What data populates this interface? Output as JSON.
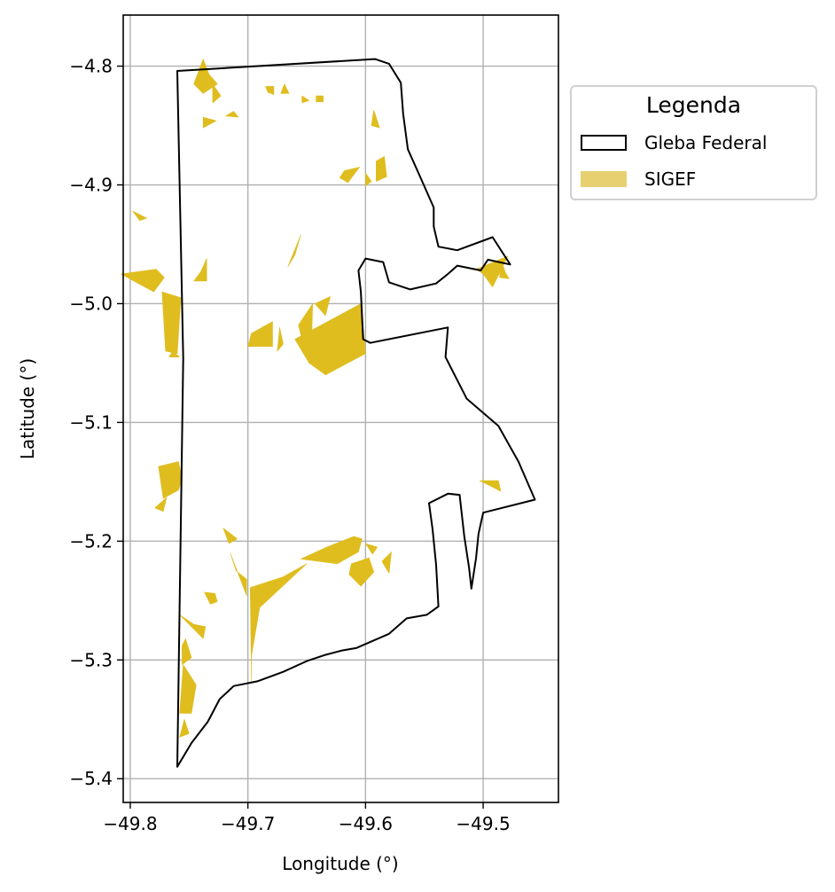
{
  "chart_data": {
    "type": "map",
    "xlabel": "Longitude (°)",
    "ylabel": "Latitude (°)",
    "xlim": [
      -49.806,
      -49.436
    ],
    "ylim": [
      -5.42,
      -4.757
    ],
    "xticks": [
      -49.8,
      -49.7,
      -49.6,
      -49.5
    ],
    "yticks": [
      -4.8,
      -4.9,
      -5.0,
      -5.1,
      -5.2,
      -5.3,
      -5.4
    ],
    "xtick_labels": [
      "−49.8",
      "−49.7",
      "−49.6",
      "−49.5"
    ],
    "ytick_labels": [
      "−4.8",
      "−4.9",
      "−5.0",
      "−5.1",
      "−5.2",
      "−5.3",
      "−5.4"
    ],
    "grid": true,
    "legend": {
      "title": "Legenda",
      "placement": "outside right, top",
      "entries": [
        {
          "label": "Gleba Federal",
          "style": "outline",
          "color": "#000000"
        },
        {
          "label": "SIGEF",
          "style": "fill",
          "color": "#e6d070"
        }
      ]
    },
    "colors": {
      "gleba_outline": "#000000",
      "sigef_fill": "#dfbd1f",
      "grid": "#b0b0b0"
    },
    "gleba_boundary": [
      [
        -49.76,
        -4.804
      ],
      [
        -49.592,
        -4.794
      ],
      [
        -49.58,
        -4.798
      ],
      [
        -49.57,
        -4.814
      ],
      [
        -49.568,
        -4.84
      ],
      [
        -49.564,
        -4.87
      ],
      [
        -49.555,
        -4.89
      ],
      [
        -49.542,
        -4.919
      ],
      [
        -49.542,
        -4.935
      ],
      [
        -49.538,
        -4.952
      ],
      [
        -49.522,
        -4.955
      ],
      [
        -49.492,
        -4.944
      ],
      [
        -49.477,
        -4.967
      ],
      [
        -49.496,
        -4.963
      ],
      [
        -49.502,
        -4.972
      ],
      [
        -49.522,
        -4.968
      ],
      [
        -49.53,
        -4.975
      ],
      [
        -49.54,
        -4.983
      ],
      [
        -49.562,
        -4.988
      ],
      [
        -49.58,
        -4.982
      ],
      [
        -49.585,
        -4.965
      ],
      [
        -49.6,
        -4.962
      ],
      [
        -49.606,
        -4.972
      ],
      [
        -49.604,
        -4.99
      ],
      [
        -49.602,
        -5.03
      ],
      [
        -49.596,
        -5.033
      ],
      [
        -49.53,
        -5.02
      ],
      [
        -49.532,
        -5.045
      ],
      [
        -49.514,
        -5.08
      ],
      [
        -49.487,
        -5.103
      ],
      [
        -49.47,
        -5.133
      ],
      [
        -49.456,
        -5.165
      ],
      [
        -49.5,
        -5.176
      ],
      [
        -49.504,
        -5.194
      ],
      [
        -49.506,
        -5.214
      ],
      [
        -49.51,
        -5.24
      ],
      [
        -49.512,
        -5.222
      ],
      [
        -49.516,
        -5.196
      ],
      [
        -49.52,
        -5.161
      ],
      [
        -49.53,
        -5.16
      ],
      [
        -49.546,
        -5.168
      ],
      [
        -49.543,
        -5.19
      ],
      [
        -49.54,
        -5.22
      ],
      [
        -49.538,
        -5.255
      ],
      [
        -49.548,
        -5.262
      ],
      [
        -49.565,
        -5.265
      ],
      [
        -49.58,
        -5.278
      ],
      [
        -49.608,
        -5.29
      ],
      [
        -49.62,
        -5.292
      ],
      [
        -49.635,
        -5.296
      ],
      [
        -49.65,
        -5.301
      ],
      [
        -49.67,
        -5.31
      ],
      [
        -49.692,
        -5.318
      ],
      [
        -49.712,
        -5.322
      ],
      [
        -49.724,
        -5.333
      ],
      [
        -49.734,
        -5.352
      ],
      [
        -49.748,
        -5.37
      ],
      [
        -49.76,
        -5.39
      ],
      [
        -49.755,
        -5.046
      ],
      [
        -49.76,
        -4.804
      ]
    ],
    "sigef_parcels": [
      [
        [
          -49.738,
          -4.794
        ],
        [
          -49.733,
          -4.807
        ],
        [
          -49.726,
          -4.815
        ],
        [
          -49.738,
          -4.823
        ],
        [
          -49.746,
          -4.815
        ]
      ],
      [
        [
          -49.73,
          -4.815
        ],
        [
          -49.723,
          -4.825
        ],
        [
          -49.73,
          -4.831
        ]
      ],
      [
        [
          -49.727,
          -4.846
        ],
        [
          -49.738,
          -4.843
        ],
        [
          -49.738,
          -4.852
        ]
      ],
      [
        [
          -49.712,
          -4.838
        ],
        [
          -49.719,
          -4.842
        ],
        [
          -49.708,
          -4.843
        ]
      ],
      [
        [
          -49.685,
          -4.817
        ],
        [
          -49.678,
          -4.817
        ],
        [
          -49.678,
          -4.824
        ],
        [
          -49.683,
          -4.822
        ]
      ],
      [
        [
          -49.669,
          -4.815
        ],
        [
          -49.665,
          -4.823
        ],
        [
          -49.672,
          -4.823
        ]
      ],
      [
        [
          -49.654,
          -4.825
        ],
        [
          -49.648,
          -4.829
        ],
        [
          -49.654,
          -4.831
        ]
      ],
      [
        [
          -49.642,
          -4.825
        ],
        [
          -49.636,
          -4.825
        ],
        [
          -49.636,
          -4.83
        ],
        [
          -49.642,
          -4.83
        ]
      ],
      [
        [
          -49.593,
          -4.837
        ],
        [
          -49.588,
          -4.852
        ],
        [
          -49.595,
          -4.85
        ]
      ],
      [
        [
          -49.605,
          -4.885
        ],
        [
          -49.618,
          -4.888
        ],
        [
          -49.622,
          -4.894
        ],
        [
          -49.615,
          -4.898
        ]
      ],
      [
        [
          -49.6,
          -4.89
        ],
        [
          -49.595,
          -4.897
        ],
        [
          -49.6,
          -4.901
        ]
      ],
      [
        [
          -49.584,
          -4.876
        ],
        [
          -49.582,
          -4.893
        ],
        [
          -49.591,
          -4.897
        ],
        [
          -49.591,
          -4.88
        ]
      ],
      [
        [
          -49.655,
          -4.942
        ],
        [
          -49.66,
          -4.959
        ],
        [
          -49.666,
          -4.969
        ]
      ],
      [
        [
          -49.798,
          -4.922
        ],
        [
          -49.786,
          -4.928
        ],
        [
          -49.792,
          -4.93
        ]
      ],
      [
        [
          -49.808,
          -4.975
        ],
        [
          -49.778,
          -4.971
        ],
        [
          -49.771,
          -4.978
        ],
        [
          -49.78,
          -4.99
        ]
      ],
      [
        [
          -49.735,
          -4.962
        ],
        [
          -49.74,
          -4.973
        ],
        [
          -49.746,
          -4.981
        ],
        [
          -49.735,
          -4.981
        ]
      ],
      [
        [
          -49.773,
          -4.99
        ],
        [
          -49.77,
          -5.04
        ],
        [
          -49.76,
          -5.042
        ],
        [
          -49.757,
          -4.995
        ]
      ],
      [
        [
          -49.764,
          -5.04
        ],
        [
          -49.758,
          -5.045
        ],
        [
          -49.767,
          -5.045
        ]
      ],
      [
        [
          -49.604,
          -5.0
        ],
        [
          -49.6,
          -5.042
        ],
        [
          -49.634,
          -5.06
        ],
        [
          -49.648,
          -5.05
        ],
        [
          -49.66,
          -5.03
        ]
      ],
      [
        [
          -49.63,
          -4.994
        ],
        [
          -49.643,
          -5.0
        ],
        [
          -49.634,
          -5.01
        ]
      ],
      [
        [
          -49.645,
          -5.0
        ],
        [
          -49.657,
          -5.018
        ],
        [
          -49.653,
          -5.034
        ],
        [
          -49.646,
          -5.038
        ]
      ],
      [
        [
          -49.679,
          -5.015
        ],
        [
          -49.697,
          -5.025
        ],
        [
          -49.7,
          -5.036
        ],
        [
          -49.679,
          -5.036
        ]
      ],
      [
        [
          -49.673,
          -5.02
        ],
        [
          -49.67,
          -5.034
        ],
        [
          -49.675,
          -5.04
        ]
      ],
      [
        [
          -49.776,
          -5.137
        ],
        [
          -49.759,
          -5.133
        ],
        [
          -49.756,
          -5.147
        ],
        [
          -49.759,
          -5.157
        ],
        [
          -49.772,
          -5.164
        ]
      ],
      [
        [
          -49.769,
          -5.163
        ],
        [
          -49.772,
          -5.175
        ],
        [
          -49.779,
          -5.172
        ]
      ],
      [
        [
          -49.737,
          -5.243
        ],
        [
          -49.728,
          -5.244
        ],
        [
          -49.726,
          -5.251
        ],
        [
          -49.732,
          -5.253
        ]
      ],
      [
        [
          -49.758,
          -5.262
        ],
        [
          -49.746,
          -5.27
        ],
        [
          -49.736,
          -5.272
        ],
        [
          -49.738,
          -5.282
        ]
      ],
      [
        [
          -49.753,
          -5.282
        ],
        [
          -49.748,
          -5.298
        ],
        [
          -49.756,
          -5.304
        ],
        [
          -49.756,
          -5.288
        ]
      ],
      [
        [
          -49.755,
          -5.304
        ],
        [
          -49.744,
          -5.321
        ],
        [
          -49.748,
          -5.345
        ],
        [
          -49.758,
          -5.345
        ]
      ],
      [
        [
          -49.754,
          -5.35
        ],
        [
          -49.75,
          -5.362
        ],
        [
          -49.758,
          -5.365
        ]
      ],
      [
        [
          -49.698,
          -5.239
        ],
        [
          -49.67,
          -5.23
        ],
        [
          -49.65,
          -5.219
        ],
        [
          -49.69,
          -5.256
        ],
        [
          -49.697,
          -5.297
        ],
        [
          -49.697,
          -5.318
        ]
      ],
      [
        [
          -49.655,
          -5.215
        ],
        [
          -49.633,
          -5.205
        ],
        [
          -49.61,
          -5.196
        ],
        [
          -49.603,
          -5.198
        ],
        [
          -49.606,
          -5.209
        ],
        [
          -49.624,
          -5.219
        ]
      ],
      [
        [
          -49.612,
          -5.219
        ],
        [
          -49.597,
          -5.214
        ],
        [
          -49.593,
          -5.226
        ],
        [
          -49.604,
          -5.238
        ],
        [
          -49.614,
          -5.228
        ]
      ],
      [
        [
          -49.578,
          -5.209
        ],
        [
          -49.586,
          -5.217
        ],
        [
          -49.58,
          -5.227
        ]
      ],
      [
        [
          -49.6,
          -5.202
        ],
        [
          -49.59,
          -5.205
        ],
        [
          -49.594,
          -5.211
        ]
      ],
      [
        [
          -49.715,
          -5.21
        ],
        [
          -49.71,
          -5.225
        ],
        [
          -49.701,
          -5.232
        ],
        [
          -49.701,
          -5.246
        ]
      ],
      [
        [
          -49.721,
          -5.189
        ],
        [
          -49.709,
          -5.198
        ],
        [
          -49.716,
          -5.202
        ]
      ],
      [
        [
          -49.479,
          -4.96
        ],
        [
          -49.506,
          -4.971
        ],
        [
          -49.5,
          -4.975
        ],
        [
          -49.492,
          -4.986
        ]
      ],
      [
        [
          -49.485,
          -4.962
        ],
        [
          -49.481,
          -4.974
        ],
        [
          -49.478,
          -4.979
        ],
        [
          -49.486,
          -4.978
        ]
      ],
      [
        [
          -49.503,
          -5.149
        ],
        [
          -49.485,
          -5.158
        ],
        [
          -49.487,
          -5.149
        ]
      ]
    ]
  }
}
